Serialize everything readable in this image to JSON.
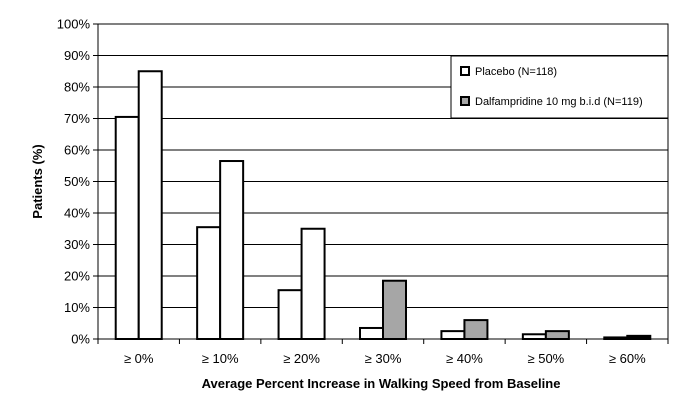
{
  "chart_data": {
    "type": "bar",
    "title": "",
    "xlabel": "Average Percent Increase in Walking Speed from Baseline",
    "ylabel": "Patients (%)",
    "ylim": [
      0,
      100
    ],
    "yticks": [
      "0%",
      "10%",
      "20%",
      "30%",
      "40%",
      "50%",
      "60%",
      "70%",
      "80%",
      "90%",
      "100%"
    ],
    "categories": [
      "≥ 0%",
      "≥ 10%",
      "≥ 20%",
      "≥ 30%",
      "≥ 40%",
      "≥ 50%",
      "≥ 60%"
    ],
    "series": [
      {
        "name": "Placebo (N=118)",
        "values": [
          70.5,
          35.5,
          15.5,
          3.5,
          2.5,
          1.5,
          0.5
        ],
        "color": "#ffffff"
      },
      {
        "name": "Dalfampridine 10 mg b.i.d (N=119)",
        "values": [
          85,
          56.5,
          35,
          18.5,
          6,
          2.5,
          1
        ],
        "color": "#a6a6a6"
      }
    ],
    "grid": true,
    "legend_position": "top-right"
  }
}
